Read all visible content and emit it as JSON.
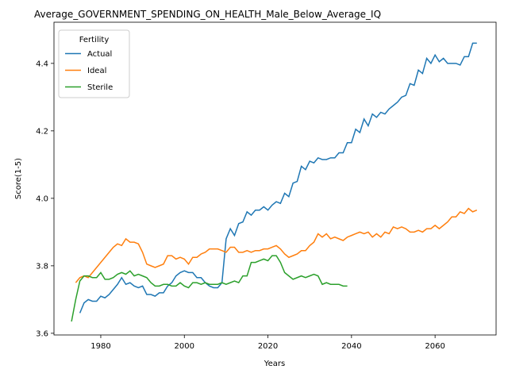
{
  "chart_data": {
    "type": "line",
    "title": "Average_GOVERNMENT_SPENDING_ON_HEALTH_Male_Below_Average_IQ",
    "xlabel": "Years",
    "ylabel": "Score(1-5)",
    "legend_title": "Fertility",
    "legend": "upper left",
    "grid": false,
    "x": [
      1973,
      1974,
      1975,
      1976,
      1977,
      1978,
      1979,
      1980,
      1981,
      1982,
      1983,
      1984,
      1985,
      1986,
      1987,
      1988,
      1989,
      1990,
      1991,
      1992,
      1993,
      1994,
      1995,
      1996,
      1997,
      1998,
      1999,
      2000,
      2001,
      2002,
      2003,
      2004,
      2005,
      2006,
      2007,
      2008,
      2009,
      2010,
      2011,
      2012,
      2013,
      2014,
      2015,
      2016,
      2017,
      2018,
      2019,
      2020,
      2021,
      2022,
      2023,
      2024,
      2025,
      2026,
      2027,
      2028,
      2029,
      2030,
      2031,
      2032,
      2033,
      2034,
      2035,
      2036,
      2037,
      2038,
      2039,
      2040,
      2041,
      2042,
      2043,
      2044,
      2045,
      2046,
      2047,
      2048,
      2049,
      2050,
      2051,
      2052,
      2053,
      2054,
      2055,
      2056,
      2057,
      2058,
      2059,
      2060,
      2061,
      2062,
      2063,
      2064,
      2065,
      2066,
      2067,
      2068,
      2069,
      2070
    ],
    "series": [
      {
        "name": "Actual",
        "color": "#1f77b4",
        "values": [
          null,
          null,
          3.66,
          3.69,
          3.7,
          3.695,
          3.695,
          3.71,
          3.705,
          3.715,
          3.73,
          3.745,
          3.765,
          3.745,
          3.75,
          3.74,
          3.735,
          3.74,
          3.715,
          3.715,
          3.71,
          3.72,
          3.72,
          3.74,
          3.75,
          3.77,
          3.78,
          3.785,
          3.78,
          3.78,
          3.765,
          3.765,
          3.75,
          3.74,
          3.735,
          3.735,
          3.75,
          3.88,
          3.91,
          3.89,
          3.925,
          3.93,
          3.96,
          3.95,
          3.965,
          3.965,
          3.975,
          3.965,
          3.98,
          3.99,
          3.985,
          4.015,
          4.005,
          4.045,
          4.05,
          4.095,
          4.085,
          4.11,
          4.105,
          4.12,
          4.115,
          4.115,
          4.12,
          4.12,
          4.135,
          4.135,
          4.165,
          4.165,
          4.205,
          4.195,
          4.235,
          4.215,
          4.25,
          4.24,
          4.255,
          4.25,
          4.265,
          4.275,
          4.285,
          4.3,
          4.305,
          4.34,
          4.335,
          4.38,
          4.37,
          4.415,
          4.4,
          4.425,
          4.405,
          4.415,
          4.4,
          4.4,
          4.4,
          4.395,
          4.42,
          4.42,
          4.46,
          4.46
        ]
      },
      {
        "name": "Ideal",
        "color": "#ff7f0e",
        "values": [
          null,
          3.75,
          3.765,
          3.77,
          3.765,
          3.78,
          3.795,
          3.81,
          3.825,
          3.84,
          3.855,
          3.865,
          3.86,
          3.88,
          3.87,
          3.87,
          3.865,
          3.84,
          3.805,
          3.8,
          3.795,
          3.8,
          3.805,
          3.83,
          3.83,
          3.82,
          3.825,
          3.82,
          3.805,
          3.825,
          3.825,
          3.835,
          3.84,
          3.85,
          3.85,
          3.85,
          3.845,
          3.84,
          3.855,
          3.855,
          3.84,
          3.84,
          3.845,
          3.84,
          3.845,
          3.845,
          3.85,
          3.85,
          3.855,
          3.86,
          3.85,
          3.835,
          3.825,
          3.83,
          3.835,
          3.845,
          3.845,
          3.86,
          3.87,
          3.895,
          3.885,
          3.895,
          3.88,
          3.885,
          3.88,
          3.875,
          3.885,
          3.89,
          3.895,
          3.9,
          3.895,
          3.9,
          3.885,
          3.895,
          3.885,
          3.9,
          3.895,
          3.915,
          3.91,
          3.915,
          3.91,
          3.9,
          3.9,
          3.905,
          3.9,
          3.91,
          3.91,
          3.92,
          3.91,
          3.92,
          3.93,
          3.945,
          3.945,
          3.96,
          3.955,
          3.97,
          3.96,
          3.965
        ]
      },
      {
        "name": "Sterile",
        "color": "#2ca02c",
        "values": [
          3.635,
          3.7,
          3.755,
          3.77,
          3.77,
          3.765,
          3.765,
          3.78,
          3.76,
          3.76,
          3.765,
          3.775,
          3.78,
          3.775,
          3.785,
          3.77,
          3.775,
          3.77,
          3.765,
          3.75,
          3.74,
          3.74,
          3.745,
          3.745,
          3.74,
          3.74,
          3.75,
          3.74,
          3.735,
          3.75,
          3.75,
          3.745,
          3.75,
          3.745,
          3.745,
          3.745,
          3.75,
          3.745,
          3.75,
          3.755,
          3.75,
          3.77,
          3.77,
          3.81,
          3.81,
          3.815,
          3.82,
          3.815,
          3.83,
          3.83,
          3.81,
          3.78,
          3.77,
          3.76,
          3.765,
          3.77,
          3.765,
          3.77,
          3.775,
          3.77,
          3.745,
          3.75,
          3.745,
          3.745,
          3.745,
          3.74,
          3.74,
          null,
          null,
          null,
          null,
          null,
          null,
          null,
          null,
          null,
          null,
          null,
          null,
          null,
          null,
          null,
          null,
          null,
          null,
          null,
          null,
          null,
          null,
          null,
          null,
          null,
          null,
          null,
          null,
          null,
          null,
          null
        ]
      }
    ],
    "xlim": [
      1968.8,
      2074.6
    ],
    "ylim": [
      3.595,
      4.522
    ],
    "xticks": [
      1980,
      2000,
      2020,
      2040,
      2060
    ],
    "yticks": [
      3.6,
      3.8,
      {
        "value": 4.0,
        "label": "4.0"
      },
      4.2,
      4.4
    ]
  }
}
